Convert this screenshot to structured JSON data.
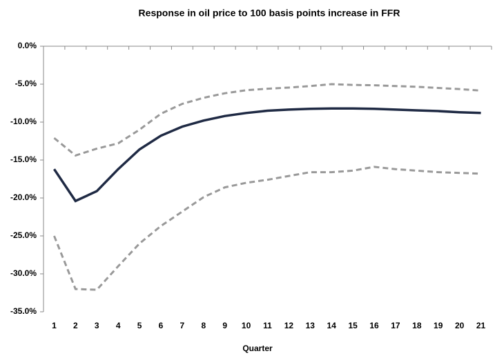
{
  "chart_data": {
    "type": "line",
    "title": "Response in oil price to 100 basis points increase in FFR",
    "x_label": "Quarter",
    "categories": [
      1,
      2,
      3,
      4,
      5,
      6,
      7,
      8,
      9,
      10,
      11,
      12,
      13,
      14,
      15,
      16,
      17,
      18,
      19,
      20,
      21
    ],
    "series": [
      {
        "color": "#999999",
        "dashed": true,
        "values": [
          -12.1,
          -14.4,
          -13.5,
          -12.8,
          -11.0,
          -8.9,
          -7.6,
          -6.8,
          -6.2,
          -5.8,
          -5.6,
          -5.45,
          -5.25,
          -5.0,
          -5.1,
          -5.15,
          -5.25,
          -5.35,
          -5.5,
          -5.65,
          -5.85
        ]
      },
      {
        "color": "#1f2a44",
        "dashed": false,
        "values": [
          -16.2,
          -20.4,
          -19.1,
          -16.2,
          -13.6,
          -11.8,
          -10.6,
          -9.8,
          -9.2,
          -8.8,
          -8.5,
          -8.35,
          -8.25,
          -8.2,
          -8.2,
          -8.25,
          -8.35,
          -8.45,
          -8.55,
          -8.7,
          -8.8
        ]
      },
      {
        "color": "#999999",
        "dashed": true,
        "values": [
          -25.0,
          -32.0,
          -32.1,
          -29.0,
          -26.0,
          -23.7,
          -21.8,
          -19.9,
          -18.6,
          -18.0,
          -17.6,
          -17.1,
          -16.6,
          -16.6,
          -16.4,
          -15.9,
          -16.2,
          -16.4,
          -16.6,
          -16.7,
          -16.8
        ]
      }
    ],
    "ylim": [
      0,
      -35
    ],
    "yticks": [
      {
        "value": 0,
        "label": "0.0%"
      },
      {
        "value": -5,
        "label": "-5.0%"
      },
      {
        "value": -10,
        "label": "-10.0%"
      },
      {
        "value": -15,
        "label": "-15.0%"
      },
      {
        "value": -20,
        "label": "-20.0%"
      },
      {
        "value": -25,
        "label": "-25.0%"
      },
      {
        "value": -30,
        "label": "-30.0%"
      },
      {
        "value": -35,
        "label": "-35.0%"
      }
    ],
    "grid": false
  }
}
